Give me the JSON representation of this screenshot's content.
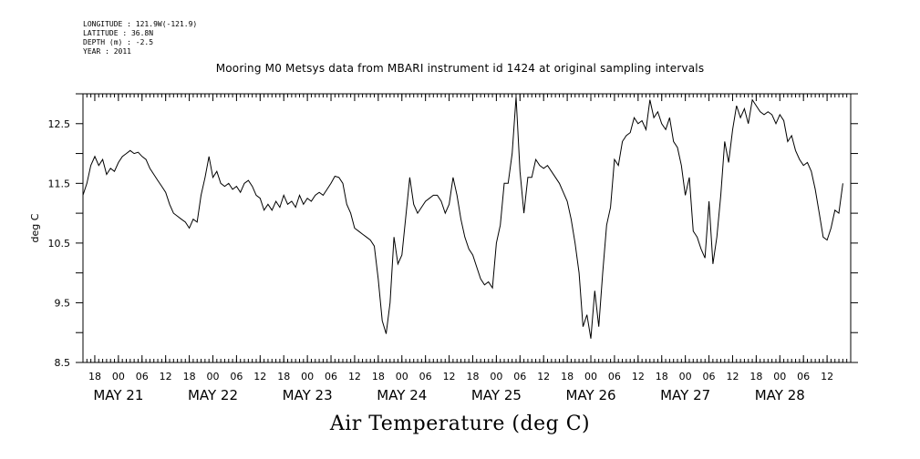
{
  "header": {
    "meta_lines": [
      "LONGITUDE : 121.9W(-121.9)",
      "LATITUDE : 36.8N",
      "DEPTH (m) : -2.5",
      "YEAR : 2011"
    ],
    "title": "Mooring M0 Metsys data from MBARI instrument id 1424 at original sampling intervals"
  },
  "chart_data": {
    "type": "line",
    "title": "Mooring M0 Metsys data from MBARI instrument id 1424 at original sampling intervals",
    "xlabel": "Air Temperature (deg C)",
    "ylabel": "deg C",
    "ylim": [
      8.5,
      13.0
    ],
    "yticks": [
      8.5,
      9.5,
      10.5,
      11.5,
      12.5
    ],
    "xlim": [
      "2011-05-20T15:00",
      "2011-05-28T18:00"
    ],
    "x_tick_labels": [
      {
        "t": "2011-05-20T18:00",
        "label": "18"
      },
      {
        "t": "2011-05-21T00:00",
        "label": "00"
      },
      {
        "t": "2011-05-21T06:00",
        "label": "06"
      },
      {
        "t": "2011-05-21T12:00",
        "label": "12"
      },
      {
        "t": "2011-05-21T18:00",
        "label": "18"
      },
      {
        "t": "2011-05-22T00:00",
        "label": "00"
      },
      {
        "t": "2011-05-22T06:00",
        "label": "06"
      },
      {
        "t": "2011-05-22T12:00",
        "label": "12"
      },
      {
        "t": "2011-05-22T18:00",
        "label": "18"
      },
      {
        "t": "2011-05-23T00:00",
        "label": "00"
      },
      {
        "t": "2011-05-23T06:00",
        "label": "06"
      },
      {
        "t": "2011-05-23T12:00",
        "label": "12"
      },
      {
        "t": "2011-05-23T18:00",
        "label": "18"
      },
      {
        "t": "2011-05-24T00:00",
        "label": "00"
      },
      {
        "t": "2011-05-24T06:00",
        "label": "06"
      },
      {
        "t": "2011-05-24T12:00",
        "label": "12"
      },
      {
        "t": "2011-05-24T18:00",
        "label": "18"
      },
      {
        "t": "2011-05-25T00:00",
        "label": "00"
      },
      {
        "t": "2011-05-25T06:00",
        "label": "06"
      },
      {
        "t": "2011-05-25T12:00",
        "label": "12"
      },
      {
        "t": "2011-05-25T18:00",
        "label": "18"
      },
      {
        "t": "2011-05-26T00:00",
        "label": "00"
      },
      {
        "t": "2011-05-26T06:00",
        "label": "06"
      },
      {
        "t": "2011-05-26T12:00",
        "label": "12"
      },
      {
        "t": "2011-05-26T18:00",
        "label": "18"
      },
      {
        "t": "2011-05-27T00:00",
        "label": "00"
      },
      {
        "t": "2011-05-27T06:00",
        "label": "06"
      },
      {
        "t": "2011-05-27T12:00",
        "label": "12"
      },
      {
        "t": "2011-05-27T18:00",
        "label": "18"
      },
      {
        "t": "2011-05-28T00:00",
        "label": "00"
      },
      {
        "t": "2011-05-28T06:00",
        "label": "06"
      },
      {
        "t": "2011-05-28T12:00",
        "label": "12"
      }
    ],
    "x_day_labels": [
      {
        "t": "2011-05-21T00:00",
        "label": "MAY 21"
      },
      {
        "t": "2011-05-22T00:00",
        "label": "MAY 22"
      },
      {
        "t": "2011-05-23T00:00",
        "label": "MAY 23"
      },
      {
        "t": "2011-05-24T00:00",
        "label": "MAY 24"
      },
      {
        "t": "2011-05-25T00:00",
        "label": "MAY 25"
      },
      {
        "t": "2011-05-26T00:00",
        "label": "MAY 26"
      },
      {
        "t": "2011-05-27T00:00",
        "label": "MAY 27"
      },
      {
        "t": "2011-05-28T00:00",
        "label": "MAY 28"
      }
    ],
    "series": [
      {
        "color": "#000000",
        "points": [
          [
            "2011-05-20T15:00",
            11.3
          ],
          [
            "2011-05-20T16:00",
            11.5
          ],
          [
            "2011-05-20T17:00",
            11.8
          ],
          [
            "2011-05-20T18:00",
            11.95
          ],
          [
            "2011-05-20T19:00",
            11.8
          ],
          [
            "2011-05-20T20:00",
            11.9
          ],
          [
            "2011-05-20T21:00",
            11.65
          ],
          [
            "2011-05-20T22:00",
            11.75
          ],
          [
            "2011-05-20T23:00",
            11.7
          ],
          [
            "2011-05-21T00:00",
            11.85
          ],
          [
            "2011-05-21T01:00",
            11.95
          ],
          [
            "2011-05-21T02:00",
            12.0
          ],
          [
            "2011-05-21T03:00",
            12.05
          ],
          [
            "2011-05-21T04:00",
            12.0
          ],
          [
            "2011-05-21T05:00",
            12.02
          ],
          [
            "2011-05-21T06:00",
            11.95
          ],
          [
            "2011-05-21T07:00",
            11.9
          ],
          [
            "2011-05-21T08:00",
            11.75
          ],
          [
            "2011-05-21T09:00",
            11.65
          ],
          [
            "2011-05-21T10:00",
            11.55
          ],
          [
            "2011-05-21T11:00",
            11.45
          ],
          [
            "2011-05-21T12:00",
            11.35
          ],
          [
            "2011-05-21T13:00",
            11.15
          ],
          [
            "2011-05-21T14:00",
            11.0
          ],
          [
            "2011-05-21T15:00",
            10.95
          ],
          [
            "2011-05-21T16:00",
            10.9
          ],
          [
            "2011-05-21T17:00",
            10.85
          ],
          [
            "2011-05-21T18:00",
            10.75
          ],
          [
            "2011-05-21T19:00",
            10.9
          ],
          [
            "2011-05-21T20:00",
            10.85
          ],
          [
            "2011-05-21T21:00",
            11.3
          ],
          [
            "2011-05-21T22:00",
            11.6
          ],
          [
            "2011-05-21T23:00",
            11.95
          ],
          [
            "2011-05-22T00:00",
            11.6
          ],
          [
            "2011-05-22T01:00",
            11.7
          ],
          [
            "2011-05-22T02:00",
            11.5
          ],
          [
            "2011-05-22T03:00",
            11.45
          ],
          [
            "2011-05-22T04:00",
            11.5
          ],
          [
            "2011-05-22T05:00",
            11.4
          ],
          [
            "2011-05-22T06:00",
            11.45
          ],
          [
            "2011-05-22T07:00",
            11.35
          ],
          [
            "2011-05-22T08:00",
            11.5
          ],
          [
            "2011-05-22T09:00",
            11.55
          ],
          [
            "2011-05-22T10:00",
            11.45
          ],
          [
            "2011-05-22T11:00",
            11.3
          ],
          [
            "2011-05-22T12:00",
            11.25
          ],
          [
            "2011-05-22T13:00",
            11.05
          ],
          [
            "2011-05-22T14:00",
            11.15
          ],
          [
            "2011-05-22T15:00",
            11.05
          ],
          [
            "2011-05-22T16:00",
            11.2
          ],
          [
            "2011-05-22T17:00",
            11.1
          ],
          [
            "2011-05-22T18:00",
            11.3
          ],
          [
            "2011-05-22T19:00",
            11.15
          ],
          [
            "2011-05-22T20:00",
            11.2
          ],
          [
            "2011-05-22T21:00",
            11.1
          ],
          [
            "2011-05-22T22:00",
            11.3
          ],
          [
            "2011-05-22T23:00",
            11.15
          ],
          [
            "2011-05-23T00:00",
            11.25
          ],
          [
            "2011-05-23T01:00",
            11.2
          ],
          [
            "2011-05-23T02:00",
            11.3
          ],
          [
            "2011-05-23T03:00",
            11.35
          ],
          [
            "2011-05-23T04:00",
            11.3
          ],
          [
            "2011-05-23T05:00",
            11.4
          ],
          [
            "2011-05-23T06:00",
            11.5
          ],
          [
            "2011-05-23T07:00",
            11.62
          ],
          [
            "2011-05-23T08:00",
            11.6
          ],
          [
            "2011-05-23T09:00",
            11.5
          ],
          [
            "2011-05-23T10:00",
            11.15
          ],
          [
            "2011-05-23T11:00",
            11.0
          ],
          [
            "2011-05-23T12:00",
            10.75
          ],
          [
            "2011-05-23T13:00",
            10.7
          ],
          [
            "2011-05-23T14:00",
            10.65
          ],
          [
            "2011-05-23T15:00",
            10.6
          ],
          [
            "2011-05-23T16:00",
            10.55
          ],
          [
            "2011-05-23T17:00",
            10.45
          ],
          [
            "2011-05-23T18:00",
            9.9
          ],
          [
            "2011-05-23T19:00",
            9.2
          ],
          [
            "2011-05-23T20:00",
            8.98
          ],
          [
            "2011-05-23T21:00",
            9.5
          ],
          [
            "2011-05-23T22:00",
            10.6
          ],
          [
            "2011-05-23T23:00",
            10.15
          ],
          [
            "2011-05-24T00:00",
            10.3
          ],
          [
            "2011-05-24T01:00",
            10.95
          ],
          [
            "2011-05-24T02:00",
            11.6
          ],
          [
            "2011-05-24T03:00",
            11.15
          ],
          [
            "2011-05-24T04:00",
            11.0
          ],
          [
            "2011-05-24T05:00",
            11.1
          ],
          [
            "2011-05-24T06:00",
            11.2
          ],
          [
            "2011-05-24T07:00",
            11.25
          ],
          [
            "2011-05-24T08:00",
            11.3
          ],
          [
            "2011-05-24T09:00",
            11.3
          ],
          [
            "2011-05-24T10:00",
            11.2
          ],
          [
            "2011-05-24T11:00",
            11.0
          ],
          [
            "2011-05-24T12:00",
            11.15
          ],
          [
            "2011-05-24T13:00",
            11.6
          ],
          [
            "2011-05-24T14:00",
            11.3
          ],
          [
            "2011-05-24T15:00",
            10.9
          ],
          [
            "2011-05-24T16:00",
            10.6
          ],
          [
            "2011-05-24T17:00",
            10.4
          ],
          [
            "2011-05-24T18:00",
            10.3
          ],
          [
            "2011-05-24T19:00",
            10.1
          ],
          [
            "2011-05-24T20:00",
            9.9
          ],
          [
            "2011-05-24T21:00",
            9.8
          ],
          [
            "2011-05-24T22:00",
            9.85
          ],
          [
            "2011-05-24T23:00",
            9.75
          ],
          [
            "2011-05-25T00:00",
            10.5
          ],
          [
            "2011-05-25T01:00",
            10.8
          ],
          [
            "2011-05-25T02:00",
            11.5
          ],
          [
            "2011-05-25T03:00",
            11.5
          ],
          [
            "2011-05-25T04:00",
            12.0
          ],
          [
            "2011-05-25T05:00",
            12.95
          ],
          [
            "2011-05-25T06:00",
            11.7
          ],
          [
            "2011-05-25T07:00",
            11.0
          ],
          [
            "2011-05-25T08:00",
            11.6
          ],
          [
            "2011-05-25T09:00",
            11.6
          ],
          [
            "2011-05-25T10:00",
            11.9
          ],
          [
            "2011-05-25T11:00",
            11.8
          ],
          [
            "2011-05-25T12:00",
            11.75
          ],
          [
            "2011-05-25T13:00",
            11.8
          ],
          [
            "2011-05-25T14:00",
            11.7
          ],
          [
            "2011-05-25T15:00",
            11.6
          ],
          [
            "2011-05-25T16:00",
            11.5
          ],
          [
            "2011-05-25T17:00",
            11.35
          ],
          [
            "2011-05-25T18:00",
            11.2
          ],
          [
            "2011-05-25T19:00",
            10.9
          ],
          [
            "2011-05-25T20:00",
            10.5
          ],
          [
            "2011-05-25T21:00",
            10.0
          ],
          [
            "2011-05-25T22:00",
            9.1
          ],
          [
            "2011-05-25T23:00",
            9.3
          ],
          [
            "2011-05-26T00:00",
            8.9
          ],
          [
            "2011-05-26T01:00",
            9.7
          ],
          [
            "2011-05-26T02:00",
            9.1
          ],
          [
            "2011-05-26T03:00",
            10.0
          ],
          [
            "2011-05-26T04:00",
            10.8
          ],
          [
            "2011-05-26T05:00",
            11.1
          ],
          [
            "2011-05-26T06:00",
            11.9
          ],
          [
            "2011-05-26T07:00",
            11.8
          ],
          [
            "2011-05-26T08:00",
            12.2
          ],
          [
            "2011-05-26T09:00",
            12.3
          ],
          [
            "2011-05-26T10:00",
            12.35
          ],
          [
            "2011-05-26T11:00",
            12.6
          ],
          [
            "2011-05-26T12:00",
            12.5
          ],
          [
            "2011-05-26T13:00",
            12.55
          ],
          [
            "2011-05-26T14:00",
            12.4
          ],
          [
            "2011-05-26T15:00",
            12.9
          ],
          [
            "2011-05-26T16:00",
            12.6
          ],
          [
            "2011-05-26T17:00",
            12.7
          ],
          [
            "2011-05-26T18:00",
            12.5
          ],
          [
            "2011-05-26T19:00",
            12.4
          ],
          [
            "2011-05-26T20:00",
            12.6
          ],
          [
            "2011-05-26T21:00",
            12.2
          ],
          [
            "2011-05-26T22:00",
            12.1
          ],
          [
            "2011-05-26T23:00",
            11.8
          ],
          [
            "2011-05-27T00:00",
            11.3
          ],
          [
            "2011-05-27T01:00",
            11.6
          ],
          [
            "2011-05-27T02:00",
            10.7
          ],
          [
            "2011-05-27T03:00",
            10.6
          ],
          [
            "2011-05-27T04:00",
            10.4
          ],
          [
            "2011-05-27T05:00",
            10.25
          ],
          [
            "2011-05-27T06:00",
            11.2
          ],
          [
            "2011-05-27T07:00",
            10.15
          ],
          [
            "2011-05-27T08:00",
            10.6
          ],
          [
            "2011-05-27T09:00",
            11.3
          ],
          [
            "2011-05-27T10:00",
            12.2
          ],
          [
            "2011-05-27T11:00",
            11.85
          ],
          [
            "2011-05-27T12:00",
            12.4
          ],
          [
            "2011-05-27T13:00",
            12.8
          ],
          [
            "2011-05-27T14:00",
            12.6
          ],
          [
            "2011-05-27T15:00",
            12.75
          ],
          [
            "2011-05-27T16:00",
            12.5
          ],
          [
            "2011-05-27T17:00",
            12.9
          ],
          [
            "2011-05-27T18:00",
            12.8
          ],
          [
            "2011-05-27T19:00",
            12.7
          ],
          [
            "2011-05-27T20:00",
            12.65
          ],
          [
            "2011-05-27T21:00",
            12.7
          ],
          [
            "2011-05-27T22:00",
            12.65
          ],
          [
            "2011-05-27T23:00",
            12.5
          ],
          [
            "2011-05-28T00:00",
            12.65
          ],
          [
            "2011-05-28T01:00",
            12.55
          ],
          [
            "2011-05-28T02:00",
            12.2
          ],
          [
            "2011-05-28T03:00",
            12.3
          ],
          [
            "2011-05-28T04:00",
            12.05
          ],
          [
            "2011-05-28T05:00",
            11.9
          ],
          [
            "2011-05-28T06:00",
            11.8
          ],
          [
            "2011-05-28T07:00",
            11.85
          ],
          [
            "2011-05-28T08:00",
            11.7
          ],
          [
            "2011-05-28T09:00",
            11.4
          ],
          [
            "2011-05-28T10:00",
            11.0
          ],
          [
            "2011-05-28T11:00",
            10.6
          ],
          [
            "2011-05-28T12:00",
            10.55
          ],
          [
            "2011-05-28T13:00",
            10.75
          ],
          [
            "2011-05-28T14:00",
            11.05
          ],
          [
            "2011-05-28T15:00",
            11.0
          ],
          [
            "2011-05-28T16:00",
            11.5
          ]
        ]
      }
    ]
  }
}
